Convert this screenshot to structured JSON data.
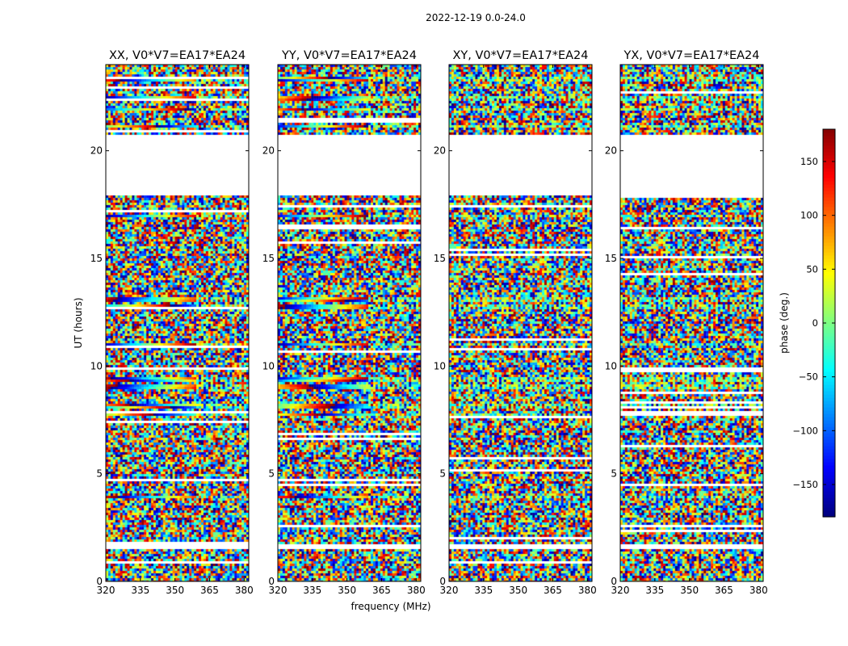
{
  "figure": {
    "title": "2022-12-19 0.0-24.0",
    "xlabel": "frequency (MHz)",
    "ylabel": "UT (hours)"
  },
  "chart_data": {
    "type": "heatmap",
    "title": "2022-12-19 0.0-24.0",
    "xlabel": "frequency (MHz)",
    "ylabel": "UT (hours)",
    "xlim": [
      320,
      382
    ],
    "ylim": [
      0,
      24
    ],
    "x_ticks": [
      320,
      335,
      350,
      365,
      380
    ],
    "y_ticks": [
      0,
      5,
      10,
      15,
      20
    ],
    "panels": [
      {
        "name": "XX",
        "title": "XX, V0*V7=EA17*EA24"
      },
      {
        "name": "YY",
        "title": "YY, V0*V7=EA17*EA24"
      },
      {
        "name": "XY",
        "title": "XY, V0*V7=EA17*EA24"
      },
      {
        "name": "YX",
        "title": "YX, V0*V7=EA17*EA24"
      }
    ],
    "gaps_hours": [
      [
        1.45,
        1.7
      ],
      [
        17.9,
        20.75
      ]
    ],
    "calibrator_bands_hours": [
      3.9,
      7.75,
      8.15,
      9.05,
      9.35,
      11.0,
      12.75,
      13.1,
      16.95,
      21.15,
      21.9,
      22.4,
      23.3
    ],
    "colorbar": {
      "label": "phase (deg.)",
      "range": [
        -180,
        180
      ],
      "ticks": [
        -150,
        -100,
        -50,
        0,
        50,
        100,
        150
      ],
      "colormap": "jet"
    }
  }
}
